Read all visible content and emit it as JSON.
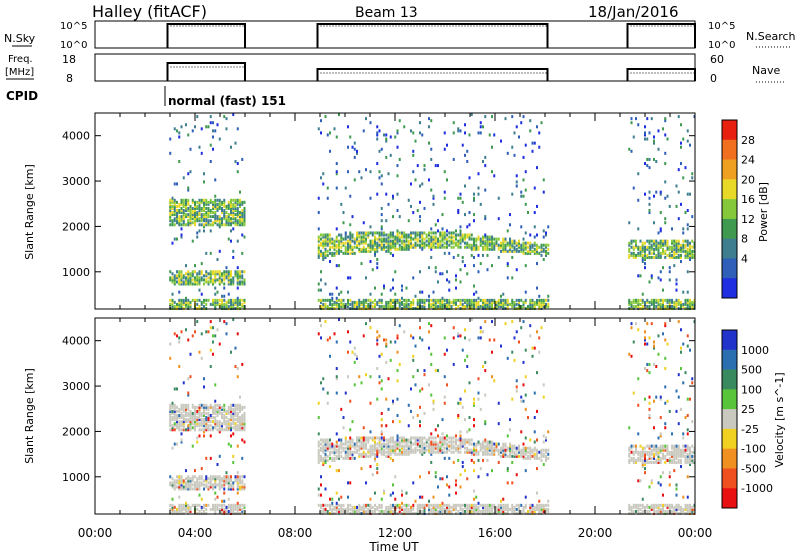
{
  "header": {
    "station": "Halley (fitACF)",
    "beam": "Beam 13",
    "date": "18/Jan/2016"
  },
  "top_panels": {
    "nsky": {
      "label": "N.Sky",
      "ticks_left": [
        "10^5",
        "10^0"
      ],
      "ticks_right": [
        "10^5",
        "10^0"
      ],
      "right_label": "N.Search"
    },
    "freq": {
      "label_line1": "Freq.",
      "label_line2": "[MHz]",
      "ticks_left": [
        "18",
        "8"
      ],
      "ticks_right": [
        "60",
        "0"
      ],
      "right_label": "Nave"
    },
    "cpid": {
      "label": "CPID",
      "mode": "normal (fast) 151"
    }
  },
  "time_axis": {
    "label": "Time UT",
    "ticks": [
      "00:00",
      "04:00",
      "08:00",
      "12:00",
      "16:00",
      "20:00",
      "00:00"
    ]
  },
  "chart_data": [
    {
      "type": "heatmap",
      "title": "",
      "xlabel": "Time UT",
      "ylabel": "Slant Range [km]",
      "xlim": [
        0,
        24
      ],
      "ylim": [
        180,
        4500
      ],
      "yticks": [
        1000,
        2000,
        3000,
        4000
      ],
      "colorbar": {
        "label": "Power [dB]",
        "ticks": [
          "4",
          "8",
          "12",
          "16",
          "20",
          "24",
          "28"
        ],
        "colors": [
          "#1e2ee0",
          "#2f5fb8",
          "#3f7e8e",
          "#3f9a50",
          "#85c93a",
          "#e8d828",
          "#f0a020",
          "#f07020",
          "#e82010"
        ]
      },
      "observation_windows_ut": [
        [
          2.9,
          6.0
        ],
        [
          8.9,
          18.1
        ],
        [
          21.3,
          24.0
        ]
      ],
      "main_echo_bands": [
        {
          "window": [
            2.9,
            6.0
          ],
          "range_km": [
            2000,
            2600
          ]
        },
        {
          "window": [
            2.9,
            6.0
          ],
          "range_km": [
            700,
            1000
          ]
        },
        {
          "window": [
            8.9,
            18.1
          ],
          "range_km": [
            1300,
            2100
          ]
        },
        {
          "window": [
            21.3,
            24.0
          ],
          "range_km": [
            1300,
            1700
          ]
        },
        {
          "window": [
            2.9,
            24.0
          ],
          "range_km": [
            180,
            400
          ]
        }
      ]
    },
    {
      "type": "heatmap",
      "title": "",
      "xlabel": "Time UT",
      "ylabel": "Slant Range [km]",
      "xlim": [
        0,
        24
      ],
      "ylim": [
        180,
        4500
      ],
      "yticks": [
        1000,
        2000,
        3000,
        4000
      ],
      "colorbar": {
        "label": "Velocity [m s^-1]",
        "ticks": [
          "1000",
          "500",
          "100",
          "25",
          "-25",
          "-100",
          "-500",
          "-1000"
        ],
        "colors": [
          "#2233cc",
          "#2c6fb0",
          "#3a8a60",
          "#58c43a",
          "#c9c9bf",
          "#f0d020",
          "#f09020",
          "#f05020",
          "#e81010"
        ]
      },
      "observation_windows_ut": [
        [
          2.9,
          6.0
        ],
        [
          8.9,
          18.1
        ],
        [
          21.3,
          24.0
        ]
      ]
    }
  ]
}
